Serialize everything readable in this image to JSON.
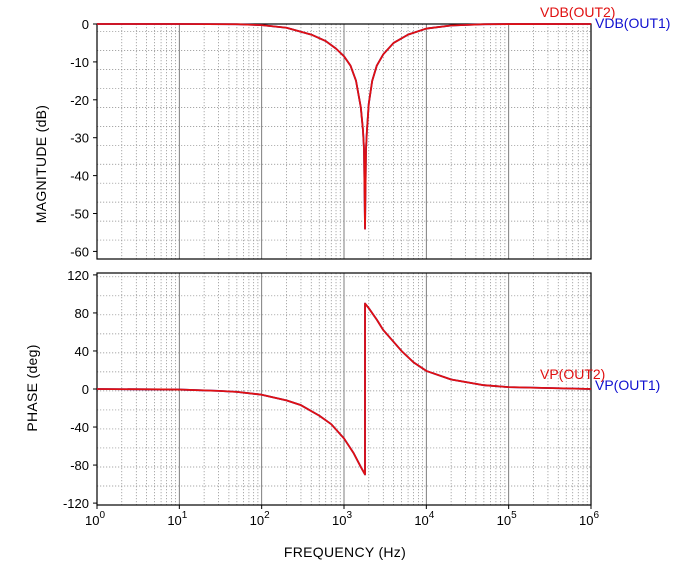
{
  "chart_data": [
    {
      "type": "line",
      "panel": "magnitude",
      "ylabel": "MAGNITUDE  (dB)",
      "xscale": "log",
      "xlim": [
        1,
        1000000
      ],
      "ylim": [
        -62,
        0
      ],
      "yticks": [
        "0",
        "-10",
        "-20",
        "-30",
        "-40",
        "-50",
        "-60"
      ],
      "ytick_values": [
        0,
        -10,
        -20,
        -30,
        -40,
        -50,
        -60
      ],
      "grid": true,
      "notch_frequency_hz": 1800,
      "series": [
        {
          "name": "VDB(OUT2)",
          "color": "#e01010",
          "x": [
            1,
            10,
            50,
            100,
            200,
            400,
            600,
            800,
            1000,
            1200,
            1400,
            1600,
            1700,
            1750,
            1800,
            1850,
            1900,
            2000,
            2200,
            2500,
            3000,
            4000,
            6000,
            10000,
            20000,
            50000,
            100000,
            1000000
          ],
          "y": [
            0,
            0,
            -0.07,
            -0.3,
            -1.0,
            -2.8,
            -4.5,
            -6.5,
            -8.5,
            -11,
            -15,
            -22,
            -28,
            -33,
            -54,
            -33,
            -28,
            -21,
            -15,
            -11,
            -8,
            -5,
            -2.8,
            -1.2,
            -0.4,
            -0.07,
            -0.02,
            0
          ]
        },
        {
          "name": "VDB(OUT1)",
          "color": "#1010d0",
          "x": [
            1,
            10,
            50,
            100,
            200,
            400,
            600,
            800,
            1000,
            1200,
            1400,
            1600,
            1700,
            1750,
            1800,
            1850,
            1900,
            2000,
            2200,
            2500,
            3000,
            4000,
            6000,
            10000,
            20000,
            50000,
            100000,
            1000000
          ],
          "y": [
            0,
            0,
            -0.07,
            -0.3,
            -1.0,
            -2.8,
            -4.5,
            -6.5,
            -8.5,
            -11,
            -15,
            -22,
            -28,
            -33,
            -54,
            -33,
            -28,
            -21,
            -15,
            -11,
            -8,
            -5,
            -2.8,
            -1.2,
            -0.4,
            -0.07,
            -0.02,
            0
          ]
        }
      ]
    },
    {
      "type": "line",
      "panel": "phase",
      "ylabel": "PHASE  (deg)",
      "xlabel": "FREQUENCY  (Hz)",
      "xscale": "log",
      "xlim": [
        1,
        1000000
      ],
      "ylim": [
        -122,
        122
      ],
      "yticks": [
        "120",
        "80",
        "40",
        "0",
        "-40",
        "-80",
        "-120"
      ],
      "ytick_values": [
        120,
        80,
        40,
        0,
        -40,
        -80,
        -120
      ],
      "xtick_mantissa": [
        "10",
        "10",
        "10",
        "10",
        "10",
        "10",
        "10"
      ],
      "xtick_exponents": [
        "0",
        "1",
        "2",
        "3",
        "4",
        "5",
        "6"
      ],
      "grid": true,
      "series": [
        {
          "name": "VP(OUT2)",
          "color": "#e01010",
          "x": [
            1,
            10,
            30,
            50,
            100,
            200,
            300,
            500,
            700,
            1000,
            1300,
            1600,
            1799,
            1801,
            2000,
            2500,
            3000,
            5000,
            7000,
            10000,
            20000,
            50000,
            100000,
            1000000
          ],
          "y": [
            0,
            -0.6,
            -2,
            -3,
            -6,
            -12,
            -17,
            -28,
            -37,
            -52,
            -67,
            -82,
            -89.9,
            89.9,
            85,
            73,
            62,
            40,
            28,
            19,
            10,
            4,
            2,
            0
          ]
        },
        {
          "name": "VP(OUT1)",
          "color": "#1010d0",
          "x": [
            1,
            10,
            30,
            50,
            100,
            200,
            300,
            500,
            700,
            1000,
            1300,
            1600,
            1799,
            1801,
            2000,
            2500,
            3000,
            5000,
            7000,
            10000,
            20000,
            50000,
            100000,
            1000000
          ],
          "y": [
            0,
            -0.6,
            -2,
            -3,
            -6,
            -12,
            -17,
            -28,
            -37,
            -52,
            -67,
            -82,
            -89.9,
            89.9,
            85,
            73,
            62,
            40,
            28,
            19,
            10,
            4,
            2,
            0
          ]
        }
      ]
    }
  ]
}
